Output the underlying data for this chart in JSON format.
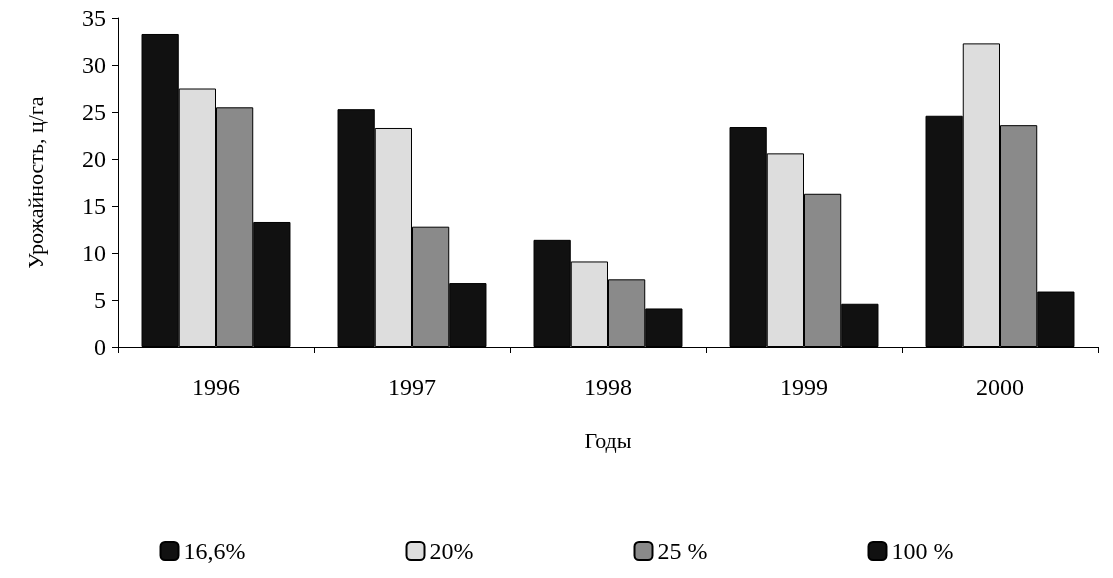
{
  "chart_data": {
    "type": "bar",
    "xlabel": "Годы",
    "ylabel": "Урожайность, ц/га",
    "categories": [
      "1996",
      "1997",
      "1998",
      "1999",
      "2000"
    ],
    "series": [
      {
        "name": "16,6%",
        "color": "#111111",
        "values": [
          33.3,
          25.3,
          11.4,
          23.4,
          24.6
        ]
      },
      {
        "name": "20%",
        "color": "#dddddd",
        "values": [
          27.5,
          23.3,
          9.1,
          20.6,
          32.3
        ]
      },
      {
        "name": "25 %",
        "color": "#8a8a8a",
        "values": [
          25.5,
          12.8,
          7.2,
          16.3,
          23.6
        ]
      },
      {
        "name": "100 %",
        "color": "#111111",
        "values": [
          13.3,
          6.8,
          4.1,
          4.6,
          5.9
        ]
      }
    ],
    "ylim": [
      0,
      35
    ],
    "yticks": [
      0,
      5,
      10,
      15,
      20,
      25,
      30,
      35
    ],
    "grid": false,
    "legend": "bottom"
  }
}
